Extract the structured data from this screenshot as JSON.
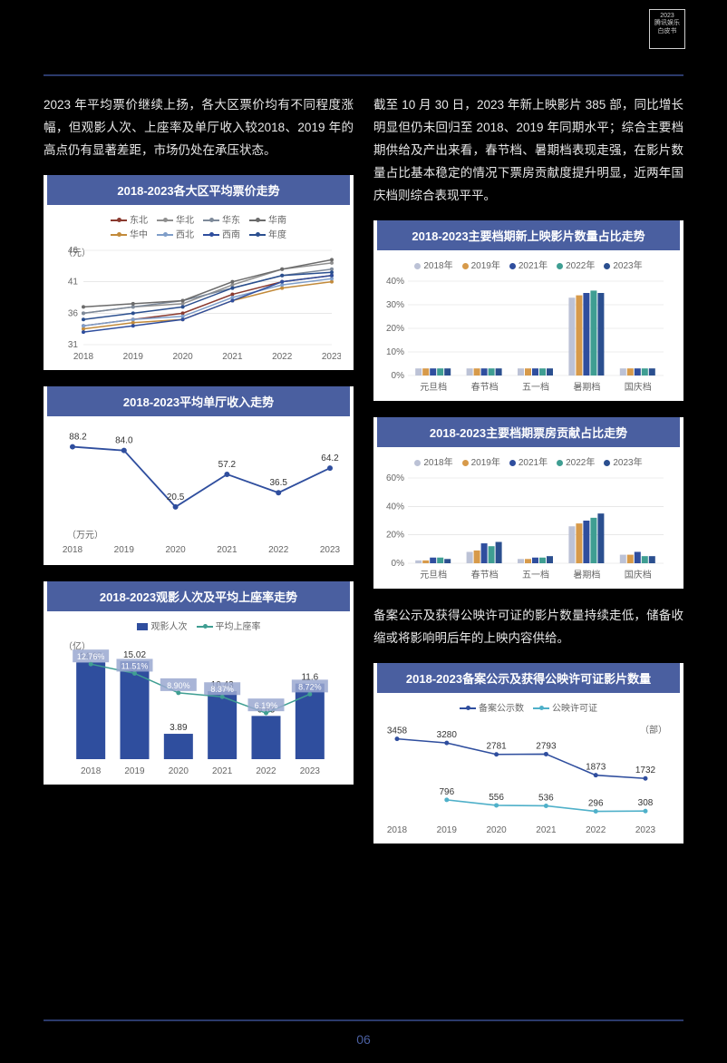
{
  "logo": {
    "line1": "2023",
    "line2": "腾讯娱乐",
    "line3": "白皮书"
  },
  "page_number": "06",
  "colors": {
    "accent": "#4a5fa0",
    "card_bg": "#ffffff",
    "page_bg": "#000000",
    "rule": "#2b3a6b",
    "grid": "#d9d9d9",
    "axis_text": "#666666",
    "series_palette": {
      "s2018": "#bcc2d6",
      "s2019": "#d79a4a",
      "s2021": "#2f4e9e",
      "s2022": "#3f9e92",
      "s2023": "#2b4f8f"
    },
    "region_palette": {
      "dongbei": "#8a3a2f",
      "huabei": "#8f8f8f",
      "huadong": "#7e8a9a",
      "huanan": "#6b6b6b",
      "huazhong": "#c28a3a",
      "xibei": "#7f9ec9",
      "xinan": "#2f4e9e",
      "niandu": "#2b4f8f"
    }
  },
  "left": {
    "para": "2023 年平均票价继续上扬，各大区票价均有不同程度涨幅，但观影人次、上座率及单厅收入较2018、2019 年的高点仍有显著差距，市场仍处在承压状态。",
    "chart1": {
      "title": "2018-2023各大区平均票价走势",
      "type": "line",
      "y_unit": "（元）",
      "x_labels": [
        "2018",
        "2019",
        "2020",
        "2021",
        "2022",
        "2023"
      ],
      "y_ticks": [
        31,
        36,
        41,
        46
      ],
      "legend": [
        {
          "key": "dongbei",
          "label": "东北"
        },
        {
          "key": "huabei",
          "label": "华北"
        },
        {
          "key": "huadong",
          "label": "华东"
        },
        {
          "key": "huanan",
          "label": "华南"
        },
        {
          "key": "huazhong",
          "label": "华中"
        },
        {
          "key": "xibei",
          "label": "西北"
        },
        {
          "key": "xinan",
          "label": "西南"
        },
        {
          "key": "niandu",
          "label": "年度"
        }
      ],
      "series": {
        "dongbei": [
          34,
          35,
          36,
          39,
          41,
          42
        ],
        "huabei": [
          36,
          37,
          37.5,
          40.5,
          43,
          44
        ],
        "huadong": [
          36,
          37,
          38,
          40,
          42,
          43
        ],
        "huanan": [
          37,
          37.5,
          38,
          41,
          43,
          44.5
        ],
        "huazhong": [
          33.5,
          34.5,
          35,
          38,
          40,
          41
        ],
        "xibei": [
          34,
          35,
          35.5,
          38.5,
          40.5,
          41.5
        ],
        "xinan": [
          33,
          34,
          35,
          38,
          41,
          42
        ],
        "niandu": [
          35,
          36,
          37,
          40,
          42,
          42.5
        ]
      }
    },
    "chart2": {
      "title": "2018-2023平均单厅收入走势",
      "type": "line",
      "y_unit": "（万元）",
      "x_labels": [
        "2018",
        "2019",
        "2020",
        "2021",
        "2022",
        "2023"
      ],
      "values": [
        88.2,
        84.0,
        20.5,
        57.2,
        36.5,
        64.2
      ],
      "line_color": "#2f4e9e"
    },
    "chart3": {
      "title": "2018-2023观影人次及平均上座率走势",
      "type": "combo",
      "y_unit": "（亿）",
      "x_labels": [
        "2018",
        "2019",
        "2020",
        "2021",
        "2022",
        "2023"
      ],
      "legend": [
        {
          "label": "观影人次",
          "type": "bar",
          "color": "#2f4e9e"
        },
        {
          "label": "平均上座率",
          "type": "line",
          "color": "#3f9e92"
        }
      ],
      "bars": [
        14.85,
        15.02,
        3.89,
        10.43,
        6.63,
        11.6
      ],
      "bar_color": "#2f4e9e",
      "rate_values": [
        12.76,
        11.51,
        8.9,
        8.37,
        6.19,
        8.72
      ],
      "rate_color": "#3f9e92",
      "rate_badge_bg": "#9aa8d0"
    }
  },
  "right": {
    "para1": "截至 10 月 30 日，2023 年新上映影片 385 部，同比增长明显但仍未回归至 2018、2019 年同期水平；综合主要档期供给及产出来看，春节档、暑期档表现走强，在影片数量占比基本稳定的情况下票房贡献度提升明显，近两年国庆档则综合表现平平。",
    "chart4": {
      "title": "2018-2023主要档期新上映影片数量占比走势",
      "type": "grouped-bar",
      "y_ticks": [
        0,
        10,
        20,
        30,
        40
      ],
      "y_suffix": "%",
      "x_labels": [
        "元旦档",
        "春节档",
        "五一档",
        "暑期档",
        "国庆档"
      ],
      "legend": [
        {
          "key": "s2018",
          "label": "2018年"
        },
        {
          "key": "s2019",
          "label": "2019年"
        },
        {
          "key": "s2021",
          "label": "2021年"
        },
        {
          "key": "s2022",
          "label": "2022年"
        },
        {
          "key": "s2023",
          "label": "2023年"
        }
      ],
      "series": {
        "s2018": [
          3,
          3,
          3,
          33,
          3
        ],
        "s2019": [
          3,
          3,
          3,
          34,
          3
        ],
        "s2021": [
          3,
          3,
          3,
          35,
          3
        ],
        "s2022": [
          3,
          3,
          3,
          36,
          3
        ],
        "s2023": [
          3,
          3,
          3,
          35,
          3
        ]
      }
    },
    "chart5": {
      "title": "2018-2023主要档期票房贡献占比走势",
      "type": "grouped-bar",
      "y_ticks": [
        0,
        20,
        40,
        60
      ],
      "y_suffix": "%",
      "x_labels": [
        "元旦档",
        "春节档",
        "五一档",
        "暑期档",
        "国庆档"
      ],
      "legend": [
        {
          "key": "s2018",
          "label": "2018年"
        },
        {
          "key": "s2019",
          "label": "2019年"
        },
        {
          "key": "s2021",
          "label": "2021年"
        },
        {
          "key": "s2022",
          "label": "2022年"
        },
        {
          "key": "s2023",
          "label": "2023年"
        }
      ],
      "series": {
        "s2018": [
          2,
          8,
          3,
          26,
          6
        ],
        "s2019": [
          2,
          9,
          3,
          28,
          6
        ],
        "s2021": [
          4,
          14,
          4,
          30,
          8
        ],
        "s2022": [
          4,
          12,
          4,
          32,
          5
        ],
        "s2023": [
          3,
          15,
          5,
          35,
          5
        ]
      }
    },
    "para2": "备案公示及获得公映许可证的影片数量持续走低，储备收缩或将影响明后年的上映内容供给。",
    "chart6": {
      "title": "2018-2023备案公示及获得公映许可证影片数量",
      "type": "line",
      "y_unit": "（部）",
      "x_labels": [
        "2018",
        "2019",
        "2020",
        "2021",
        "2022",
        "2023"
      ],
      "legend": [
        {
          "label": "备案公示数",
          "color": "#2f4e9e"
        },
        {
          "label": "公映许可证",
          "color": "#4fb0c9"
        }
      ],
      "series_a": [
        3458,
        3280,
        2781,
        2793,
        1873,
        1732
      ],
      "series_b": [
        null,
        796,
        556,
        536,
        296,
        308
      ]
    }
  }
}
